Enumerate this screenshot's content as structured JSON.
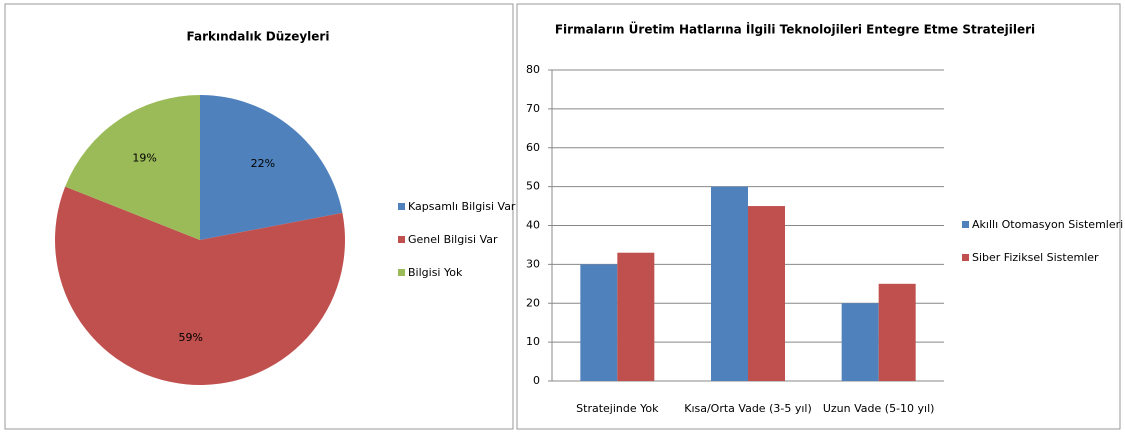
{
  "chart_data": [
    {
      "type": "pie",
      "title": "Farkındalık Düzeyleri",
      "categories": [
        "Kapsamlı Bilgisi Var",
        "Genel Bilgisi Var",
        "Bilgisi Yok"
      ],
      "values": [
        22,
        59,
        19
      ],
      "value_labels": [
        "22%",
        "59%",
        "19%"
      ],
      "colors": [
        "#4f81bd",
        "#c0504d",
        "#9bbb59"
      ],
      "legend": "right"
    },
    {
      "type": "bar",
      "title": "Firmaların Üretim Hatlarına İlgili Teknolojileri Entegre Etme Stratejileri",
      "categories": [
        "Stratejinde Yok",
        "Kısa/Orta Vade (3-5 yıl)",
        "Uzun Vade (5-10 yıl)"
      ],
      "series": [
        {
          "name": "Akıllı Otomasyon Sistemleri",
          "color": "#4f81bd",
          "values": [
            30,
            50,
            20
          ]
        },
        {
          "name": "Siber Fiziksel Sistemler",
          "color": "#c0504d",
          "values": [
            33,
            45,
            25
          ]
        }
      ],
      "ylim": [
        0,
        80
      ],
      "yticks": [
        0,
        10,
        20,
        30,
        40,
        50,
        60,
        70,
        80
      ],
      "grid": true,
      "legend": "right"
    }
  ]
}
